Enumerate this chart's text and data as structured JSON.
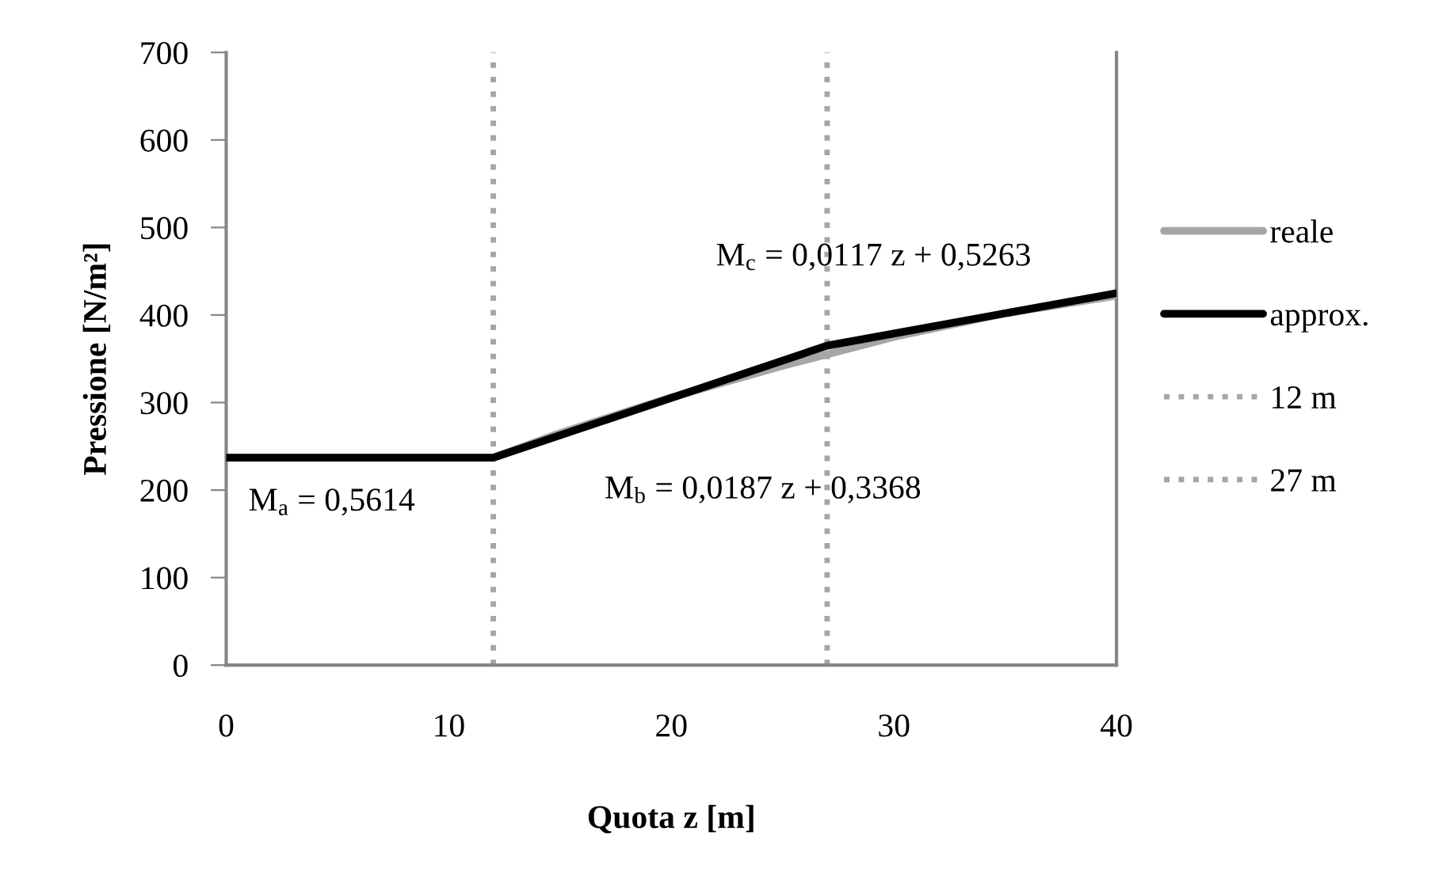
{
  "chart_data": {
    "type": "line",
    "xlabel": "Quota z [m]",
    "ylabel": "Pressione [N/m²]",
    "xlim": [
      0,
      40
    ],
    "xticks": [
      0,
      10,
      20,
      30,
      40
    ],
    "ylim": [
      0,
      700
    ],
    "yticks": [
      0,
      100,
      200,
      300,
      400,
      500,
      600,
      700
    ],
    "series": [
      {
        "name": "reale",
        "color": "#a6a6a6",
        "x": [
          0,
          12,
          15,
          20,
          25,
          27,
          30,
          35,
          40
        ],
        "values": [
          237,
          237,
          265,
          306,
          342,
          355,
          375,
          402,
          422
        ]
      },
      {
        "name": "approx.",
        "color": "#000000",
        "x": [
          0,
          12,
          27,
          40
        ],
        "values": [
          237,
          237,
          365,
          425
        ]
      },
      {
        "name": "12 m",
        "color": "#a6a6a6",
        "line_style": "dotted",
        "x": [
          12,
          12
        ],
        "values": [
          0,
          700
        ]
      },
      {
        "name": "27 m",
        "color": "#a6a6a6",
        "line_style": "dotted",
        "x": [
          27,
          27
        ],
        "values": [
          0,
          700
        ]
      }
    ],
    "annotations": [
      "M$_{a}$ = 0,5614",
      "M$_{b}$ = 0,0187 z + 0,3368",
      "M$_{c}$ = 0,0117 z + 0,5263"
    ],
    "legend": "right",
    "marker": "none",
    "line_style": "solid"
  }
}
